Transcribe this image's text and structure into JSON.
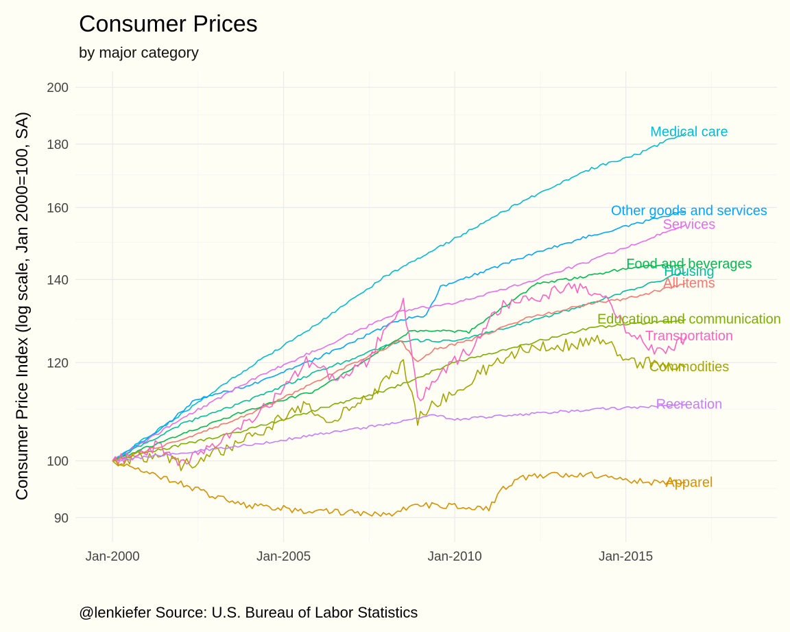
{
  "chart_data": {
    "type": "line",
    "title": "Consumer Prices",
    "subtitle": "by major category",
    "ylabel": "Consumer Price Index (log scale, Jan 2000=100, SA)",
    "xlabel": "",
    "caption": "@lenkiefer Source: U.S. Bureau of Labor Statistics",
    "y_scale": "log",
    "ylim": [
      86,
      206
    ],
    "xlim": [
      "1998-12",
      "2019-06"
    ],
    "grid": true,
    "legend": "none (direct labels at line ends)",
    "x_ticks": [
      "Jan-2000",
      "Jan-2005",
      "Jan-2010",
      "Jan-2015"
    ],
    "y_ticks": [
      90,
      100,
      120,
      140,
      160,
      180,
      200
    ],
    "series": [
      {
        "name": "Medical care",
        "color": "#00bcd8",
        "x": [
          "2000-01",
          "2002-01",
          "2004-01",
          "2006-01",
          "2008-01",
          "2010-01",
          "2012-01",
          "2014-01",
          "2015-06",
          "2016-10"
        ],
        "y": [
          100,
          109,
          119,
          129,
          141,
          151,
          162,
          172,
          177,
          184
        ]
      },
      {
        "name": "Other goods and services",
        "color": "#00a5ff",
        "x": [
          "2000-01",
          "2001-06",
          "2002-06",
          "2004-01",
          "2006-01",
          "2008-06",
          "2009-03",
          "2009-08",
          "2012-01",
          "2014-01",
          "2016-10"
        ],
        "y": [
          100,
          106,
          112,
          115,
          121,
          130,
          131,
          138,
          146,
          152,
          159
        ]
      },
      {
        "name": "Services",
        "color": "#e76bf3",
        "x": [
          "2000-01",
          "2002-01",
          "2004-01",
          "2006-01",
          "2008-06",
          "2010-01",
          "2012-01",
          "2014-01",
          "2016-10"
        ],
        "y": [
          100,
          108,
          116,
          123,
          132,
          134,
          139,
          145,
          155
        ]
      },
      {
        "name": "Food and beverages",
        "color": "#00bb4e",
        "x": [
          "2000-01",
          "2002-01",
          "2004-01",
          "2006-01",
          "2008-09",
          "2009-06",
          "2010-06",
          "2011-06",
          "2012-06",
          "2014-01",
          "2015-01",
          "2016-10"
        ],
        "y": [
          100,
          105,
          110,
          114,
          127,
          127.5,
          127,
          133,
          139,
          141,
          143,
          144
        ]
      },
      {
        "name": "Housing",
        "color": "#00bf9c",
        "x": [
          "2000-01",
          "2002-01",
          "2004-01",
          "2006-01",
          "2008-06",
          "2010-01",
          "2012-01",
          "2014-01",
          "2016-10"
        ],
        "y": [
          100,
          107,
          112,
          118,
          125,
          125,
          129,
          134,
          142
        ]
      },
      {
        "name": "All items",
        "color": "#f8766d",
        "x": [
          "2000-01",
          "2002-01",
          "2004-01",
          "2006-01",
          "2008-06",
          "2008-12",
          "2009-06",
          "2010-06",
          "2012-01",
          "2014-01",
          "2015-01",
          "2016-10"
        ],
        "y": [
          100,
          104,
          109,
          116,
          125,
          120,
          123,
          125,
          130,
          134,
          135,
          139
        ]
      },
      {
        "name": "Education and communication",
        "color": "#7cae00",
        "x": [
          "2000-01",
          "2002-01",
          "2004-01",
          "2006-01",
          "2008-01",
          "2010-01",
          "2012-01",
          "2014-01",
          "2016-10"
        ],
        "y": [
          100,
          103,
          106,
          110,
          114,
          120,
          124,
          128,
          130
        ]
      },
      {
        "name": "Transportation",
        "color": "#ff61c3",
        "x": [
          "2000-01",
          "2001-06",
          "2001-12",
          "2003-03",
          "2004-06",
          "2005-09",
          "2006-09",
          "2007-06",
          "2008-07",
          "2008-12",
          "2009-06",
          "2010-06",
          "2011-06",
          "2012-03",
          "2013-06",
          "2014-06",
          "2015-01",
          "2015-06",
          "2016-02",
          "2016-10"
        ],
        "y": [
          100,
          103,
          99,
          104,
          110,
          120,
          116,
          120,
          135,
          112,
          116,
          123,
          134,
          135,
          138,
          137,
          127,
          125,
          122,
          126
        ]
      },
      {
        "name": "Commodities",
        "color": "#a3a500",
        "x": [
          "2000-01",
          "2001-06",
          "2002-01",
          "2003-03",
          "2004-06",
          "2005-09",
          "2006-06",
          "2007-06",
          "2008-07",
          "2008-12",
          "2009-06",
          "2010-06",
          "2011-06",
          "2012-06",
          "2013-06",
          "2014-06",
          "2015-01",
          "2015-06",
          "2016-10"
        ],
        "y": [
          100,
          101,
          99,
          102,
          106,
          111,
          108,
          112,
          120,
          108,
          111,
          116,
          121,
          124,
          124,
          125,
          120,
          120,
          119
        ]
      },
      {
        "name": "Recreation",
        "color": "#c77cff",
        "x": [
          "2000-01",
          "2002-01",
          "2004-01",
          "2006-01",
          "2008-01",
          "2009-06",
          "2010-01",
          "2012-01",
          "2014-01",
          "2016-10"
        ],
        "y": [
          100,
          101.5,
          103,
          105,
          107,
          109,
          108,
          109,
          110,
          111
        ]
      },
      {
        "name": "Apparel",
        "color": "#d89000",
        "x": [
          "2000-01",
          "2001-01",
          "2002-01",
          "2003-01",
          "2004-01",
          "2005-01",
          "2006-01",
          "2007-01",
          "2008-01",
          "2009-01",
          "2010-01",
          "2011-01",
          "2011-06",
          "2012-01",
          "2013-01",
          "2014-01",
          "2015-01",
          "2016-01",
          "2016-10"
        ],
        "y": [
          100,
          98,
          96,
          93.5,
          92,
          91.5,
          91,
          91,
          90.5,
          92,
          92,
          91.5,
          95,
          97,
          97.5,
          97.5,
          96.5,
          96,
          96
        ]
      }
    ]
  }
}
